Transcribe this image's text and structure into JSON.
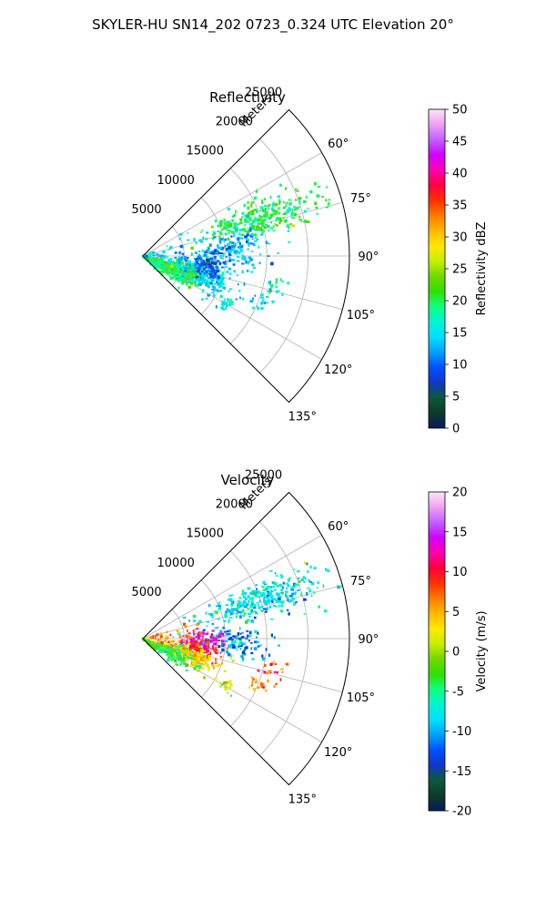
{
  "figure": {
    "suptitle": "SKYLER-HU  SN14_202  0723_0.324 UTC Elevation 20°",
    "radius_unit": "Meters"
  },
  "chart_data": [
    {
      "type": "polar-sector",
      "title": "Reflectivity",
      "theta_range_deg": [
        45,
        135
      ],
      "r_max": 25000,
      "theta_ticks": [
        {
          "deg": 60,
          "label": "60°"
        },
        {
          "deg": 75,
          "label": "75°"
        },
        {
          "deg": 90,
          "label": "90°"
        },
        {
          "deg": 105,
          "label": "105°"
        },
        {
          "deg": 120,
          "label": "120°"
        },
        {
          "deg": 135,
          "label": "135°"
        }
      ],
      "r_ticks": [
        {
          "value": 5000,
          "label": "5000"
        },
        {
          "value": 10000,
          "label": "10000"
        },
        {
          "value": 15000,
          "label": "15000"
        },
        {
          "value": 20000,
          "label": "20000"
        },
        {
          "value": 25000,
          "label": "25000"
        }
      ],
      "colorbar": {
        "label": "Reflectivity dBZ",
        "min": 0,
        "max": 50,
        "ticks": [
          0,
          5,
          10,
          15,
          20,
          25,
          30,
          35,
          40,
          45,
          50
        ],
        "stops": [
          "#0a1a5e",
          "#0c3b2a",
          "#0b5a3a",
          "#1436c8",
          "#0050ff",
          "#00a0ff",
          "#00e0ff",
          "#00f5d0",
          "#10ff80",
          "#30e000",
          "#70d800",
          "#c8ee00",
          "#ffe800",
          "#ffb800",
          "#ff7a00",
          "#ff3000",
          "#ff0040",
          "#ff00b0",
          "#d000ff",
          "#c060ff",
          "#f0a0f0",
          "#fde6fb"
        ]
      },
      "clusters": [
        {
          "theta": 72,
          "r": 15000,
          "value": 20,
          "n": 300,
          "st": 4,
          "sr": 3500
        },
        {
          "theta": 85,
          "r": 11000,
          "value": 13,
          "n": 160,
          "st": 6,
          "sr": 2300
        },
        {
          "theta": 108,
          "r": 6500,
          "value": 14,
          "n": 400,
          "st": 6,
          "sr": 2300
        },
        {
          "theta": 115,
          "r": 4000,
          "value": 20,
          "n": 220,
          "st": 7,
          "sr": 1800
        },
        {
          "theta": 97,
          "r": 8000,
          "value": 9,
          "n": 110,
          "st": 6,
          "sr": 1200
        },
        {
          "theta": 127,
          "r": 1100,
          "value": 18,
          "n": 90,
          "st": 7,
          "sr": 600
        },
        {
          "theta": 84,
          "r": 3500,
          "value": 13,
          "n": 35,
          "st": 8,
          "sr": 2000
        },
        {
          "theta": 105,
          "r": 16500,
          "value": 16,
          "n": 20,
          "st": 3,
          "sr": 1000
        },
        {
          "theta": 112,
          "r": 15000,
          "value": 14,
          "n": 15,
          "st": 2,
          "sr": 700
        },
        {
          "theta": 120,
          "r": 11500,
          "value": 16,
          "n": 20,
          "st": 2,
          "sr": 500
        }
      ]
    },
    {
      "type": "polar-sector",
      "title": "Velocity",
      "theta_range_deg": [
        45,
        135
      ],
      "r_max": 25000,
      "theta_ticks": [
        {
          "deg": 60,
          "label": "60°"
        },
        {
          "deg": 75,
          "label": "75°"
        },
        {
          "deg": 90,
          "label": "90°"
        },
        {
          "deg": 105,
          "label": "105°"
        },
        {
          "deg": 120,
          "label": "120°"
        },
        {
          "deg": 135,
          "label": "135°"
        }
      ],
      "r_ticks": [
        {
          "value": 5000,
          "label": "5000"
        },
        {
          "value": 10000,
          "label": "10000"
        },
        {
          "value": 15000,
          "label": "15000"
        },
        {
          "value": 20000,
          "label": "20000"
        },
        {
          "value": 25000,
          "label": "25000"
        }
      ],
      "colorbar": {
        "label": "Velocity (m/s)",
        "min": -20,
        "max": 20,
        "ticks": [
          -20,
          -15,
          -10,
          -5,
          0,
          5,
          10,
          15,
          20
        ],
        "stops": [
          "#0a1a5e",
          "#0c3b2a",
          "#0b5a3a",
          "#1436c8",
          "#0050ff",
          "#00a0ff",
          "#00e0ff",
          "#00f5d0",
          "#10ff80",
          "#30e000",
          "#70d800",
          "#c8ee00",
          "#ffe800",
          "#ffb800",
          "#ff7a00",
          "#ff3000",
          "#ff0040",
          "#ff00b0",
          "#d000ff",
          "#c060ff",
          "#f0a0f0",
          "#fde6fb"
        ]
      },
      "clusters": [
        {
          "theta": 72,
          "r": 15000,
          "value": -8,
          "n": 300,
          "st": 4,
          "sr": 3500
        },
        {
          "theta": 92,
          "r": 11000,
          "value": -11,
          "n": 120,
          "st": 5,
          "sr": 2000
        },
        {
          "theta": 90,
          "r": 7500,
          "value": 14,
          "n": 70,
          "st": 4,
          "sr": 1200
        },
        {
          "theta": 100,
          "r": 7000,
          "value": 10,
          "n": 140,
          "st": 4,
          "sr": 1400
        },
        {
          "theta": 110,
          "r": 5500,
          "value": 3,
          "n": 280,
          "st": 5,
          "sr": 1900
        },
        {
          "theta": 118,
          "r": 3500,
          "value": -4,
          "n": 150,
          "st": 6,
          "sr": 1500
        },
        {
          "theta": 127,
          "r": 1100,
          "value": -2,
          "n": 90,
          "st": 7,
          "sr": 600
        },
        {
          "theta": 84,
          "r": 3500,
          "value": 7,
          "n": 40,
          "st": 8,
          "sr": 2000
        },
        {
          "theta": 105,
          "r": 16500,
          "value": 8,
          "n": 20,
          "st": 3,
          "sr": 1000
        },
        {
          "theta": 112,
          "r": 15000,
          "value": 6,
          "n": 15,
          "st": 2,
          "sr": 700
        },
        {
          "theta": 120,
          "r": 11500,
          "value": 1,
          "n": 20,
          "st": 2,
          "sr": 500
        }
      ]
    }
  ]
}
